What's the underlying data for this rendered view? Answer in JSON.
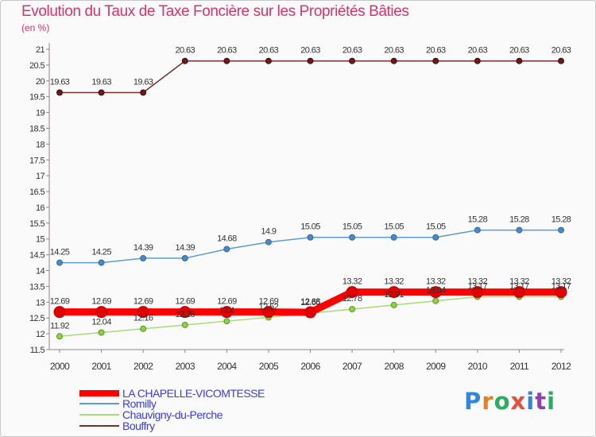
{
  "title": "Evolution du Taux de Taxe Foncière sur les Propriétés Bâties",
  "unit": "(en %)",
  "logo": {
    "letters": [
      "P",
      "r",
      "o",
      "x",
      "i",
      "t",
      "i"
    ],
    "colors": [
      "#2e86de",
      "#e67e22",
      "#27ae60",
      "#e74c3c",
      "#2e86de",
      "#8e44ad",
      "#27ae60"
    ]
  },
  "chart_data": {
    "type": "line",
    "title": "Evolution du Taux de Taxe Foncière sur les Propriétés Bâties",
    "ylabel": "(en %)",
    "xlabel": "",
    "x": [
      "2000",
      "2001",
      "2002",
      "2003",
      "2004",
      "2005",
      "2006",
      "2007",
      "2008",
      "2009",
      "2010",
      "2011",
      "2012"
    ],
    "ylim": [
      11.5,
      21
    ],
    "yticks": [
      "11.5",
      "12",
      "12.5",
      "13",
      "13.5",
      "14",
      "14.5",
      "15",
      "15.5",
      "16",
      "16.5",
      "17",
      "17.5",
      "18",
      "18.5",
      "19",
      "19.5",
      "20",
      "20.5",
      "21"
    ],
    "grid": false,
    "legend": "bottom-left",
    "series": [
      {
        "name": "LA CHAPELLE-VICOMTESSE",
        "color": "#ff0000",
        "values": [
          12.69,
          12.69,
          12.69,
          12.69,
          12.69,
          12.69,
          12.68,
          13.32,
          13.32,
          13.32,
          13.32,
          13.32,
          13.32
        ],
        "labels": [
          "12.69",
          "12.69",
          "12.69",
          "12.69",
          "12.69",
          "12.69",
          "12.68",
          "13.32",
          "13.32",
          "13.32",
          "13.32",
          "13.32",
          "13.32"
        ]
      },
      {
        "name": "Romilly",
        "color": "#5b9bd5",
        "values": [
          14.25,
          14.25,
          14.39,
          14.39,
          14.68,
          14.9,
          15.05,
          15.05,
          15.05,
          15.05,
          15.28,
          15.28,
          15.28
        ],
        "labels": [
          "14.25",
          "14.25",
          "14.39",
          "14.39",
          "14.68",
          "14.9",
          "15.05",
          "15.05",
          "15.05",
          "15.05",
          "15.28",
          "15.28",
          "15.28"
        ]
      },
      {
        "name": "Chauvigny-du-Perche",
        "color": "#a8dc78",
        "values": [
          11.92,
          12.04,
          12.16,
          12.28,
          12.4,
          12.52,
          12.65,
          12.78,
          12.91,
          13.04,
          13.17,
          13.17,
          13.17
        ],
        "labels": [
          "11.92",
          "12.04",
          "12.16",
          "12.28",
          "12.4",
          "12.52",
          "12.65",
          "12.78",
          "12.91",
          "13.04",
          "13.17",
          "13.17",
          "13.17"
        ]
      },
      {
        "name": "Bouffry",
        "color": "#7a3030",
        "values": [
          19.63,
          19.63,
          19.63,
          20.63,
          20.63,
          20.63,
          20.63,
          20.63,
          20.63,
          20.63,
          20.63,
          20.63,
          20.63
        ],
        "labels": [
          "19.63",
          "19.63",
          "19.63",
          "20.63",
          "20.63",
          "20.63",
          "20.63",
          "20.63",
          "20.63",
          "20.63",
          "20.63",
          "20.63",
          "20.63"
        ]
      }
    ]
  }
}
